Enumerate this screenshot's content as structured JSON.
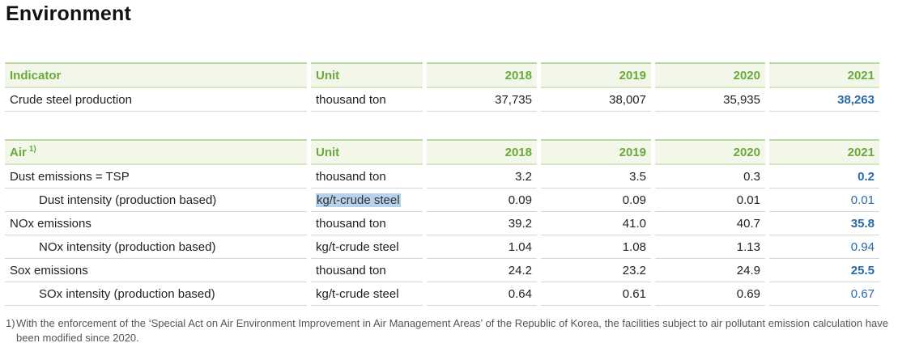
{
  "page_title": "Environment",
  "production_table": {
    "headers": [
      "Indicator",
      "Unit",
      "2018",
      "2019",
      "2020",
      "2021"
    ],
    "rows": [
      {
        "indicator": "Crude steel production",
        "unit": "thousand ton",
        "values": [
          "37,735",
          "38,007",
          "35,935",
          "38,263"
        ]
      }
    ]
  },
  "air_table": {
    "headers": [
      "Air",
      "Unit",
      "2018",
      "2019",
      "2020",
      "2021"
    ],
    "header_note": "1)",
    "rows": [
      {
        "indicator": "Dust emissions = TSP",
        "unit": "thousand ton",
        "values": [
          "3.2",
          "3.5",
          "0.3",
          "0.2"
        ]
      },
      {
        "indicator": "Dust intensity (production based)",
        "unit": "kg/t-crude steel",
        "values": [
          "0.09",
          "0.09",
          "0.01",
          "0.01"
        ]
      },
      {
        "indicator": "NOx emissions",
        "unit": "thousand ton",
        "values": [
          "39.2",
          "41.0",
          "40.7",
          "35.8"
        ]
      },
      {
        "indicator": "NOx intensity (production based)",
        "unit": "kg/t-crude steel",
        "values": [
          "1.04",
          "1.08",
          "1.13",
          "0.94"
        ]
      },
      {
        "indicator": "Sox emissions",
        "unit": "thousand ton",
        "values": [
          "24.2",
          "23.2",
          "24.9",
          "25.5"
        ]
      },
      {
        "indicator": "SOx intensity (production based)",
        "unit": "kg/t-crude steel",
        "values": [
          "0.64",
          "0.61",
          "0.69",
          "0.67"
        ]
      }
    ]
  },
  "footnote": {
    "marker": "1)",
    "text": "With the enforcement of the ‘Special Act on Air Environment Improvement in Air Management Areas’ of the Republic of Korea, the facilities subject to air pollutant emission calculation have been modified since 2020."
  },
  "colors": {
    "header_text": "#6aaa3a",
    "header_bg": "#f2f7ea",
    "highlight_2021": "#2a6aa8",
    "selection": "#b7d2ec"
  }
}
